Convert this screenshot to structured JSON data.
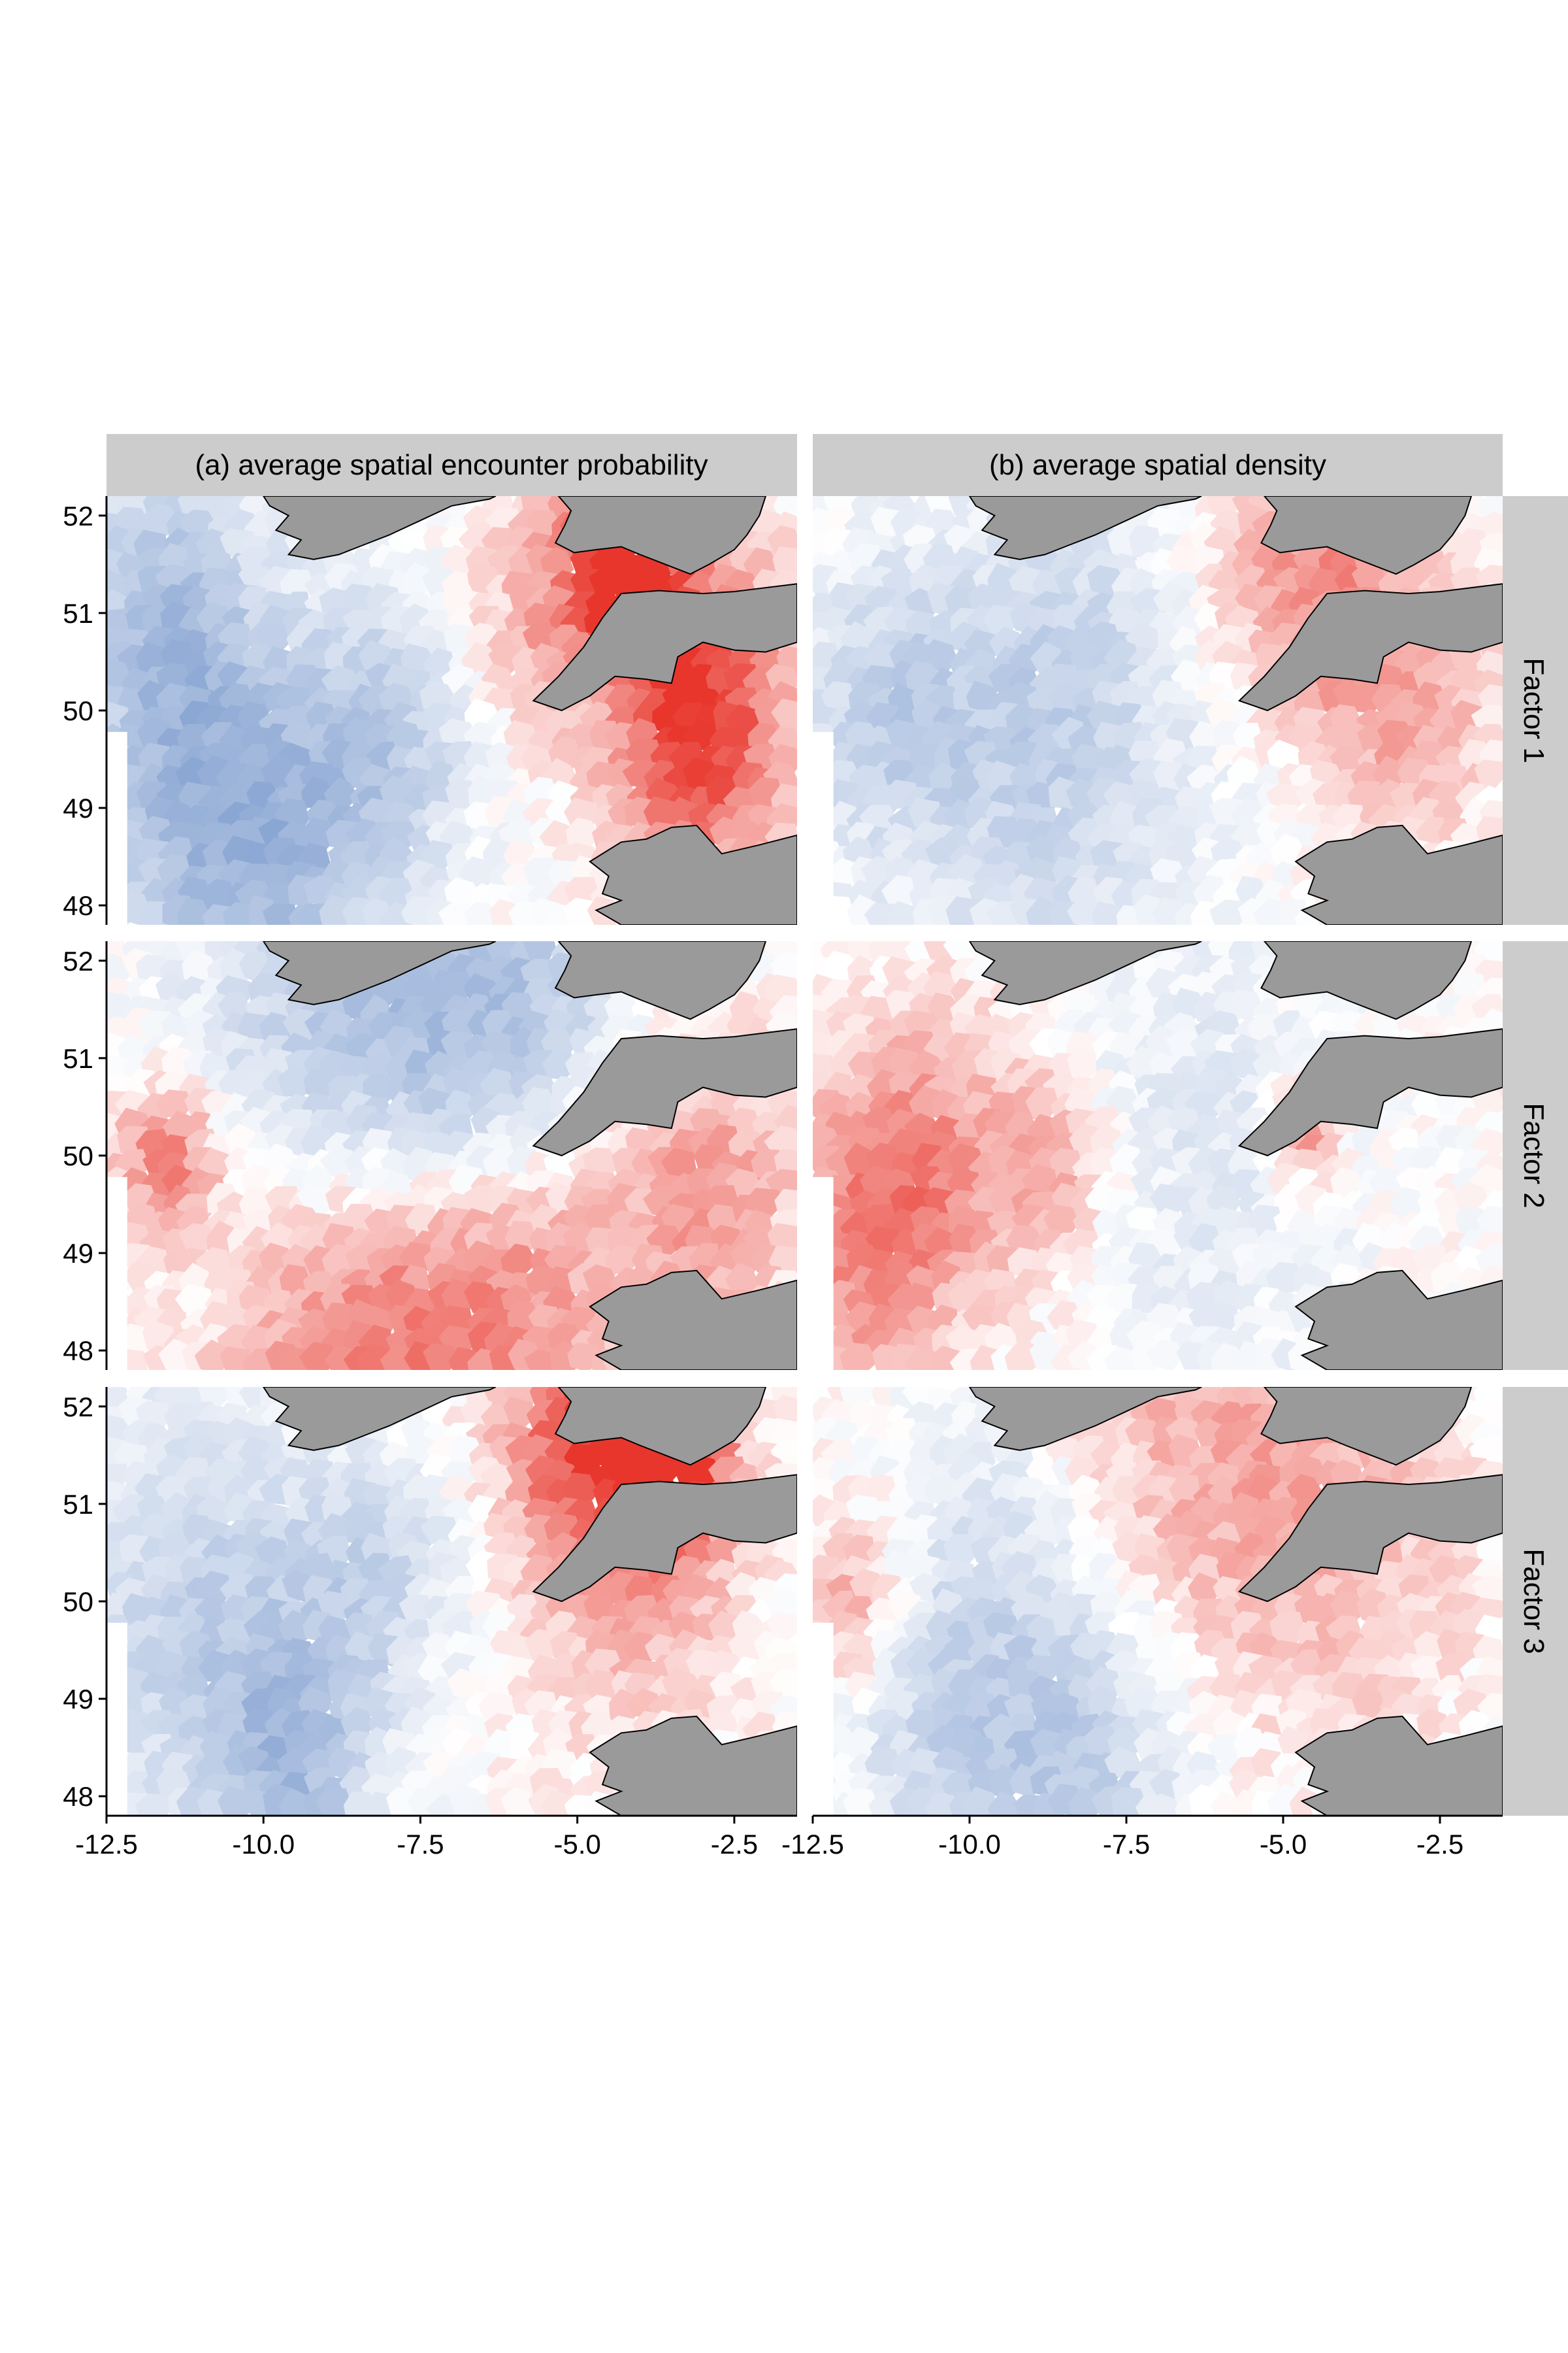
{
  "figure": {
    "column_strips": [
      "(a) average spatial encounter probability",
      "(b) average spatial density"
    ],
    "row_strips": [
      "Factor 1",
      "Factor 2",
      "Factor 3"
    ]
  },
  "chart_data": {
    "type": "heatmap",
    "xlim": [
      -12.5,
      -1.5
    ],
    "ylim": [
      47.8,
      52.2
    ],
    "x_ticks": [
      -12.5,
      -10.0,
      -7.5,
      -5.0,
      -2.5
    ],
    "x_tick_labels": [
      "-12.5",
      "-10.0",
      "-7.5",
      "-5.0",
      "-2.5"
    ],
    "y_ticks": [
      48,
      49,
      50,
      51,
      52
    ],
    "y_tick_labels": [
      "48",
      "49",
      "50",
      "51",
      "52"
    ],
    "palette": {
      "negative": "#8aa6d3",
      "neutral": "#ffffff",
      "positive": "#e8362c"
    },
    "land_color": "#9a9a9a",
    "coast_color": "#000000",
    "strip_color": "#cccccc",
    "panels": [
      {
        "row": "Factor 1",
        "column": "(a) average spatial encounter probability",
        "hotspots": [
          {
            "lon": -4.2,
            "lat": 51.6,
            "value": 1.0,
            "r": 0.9
          },
          {
            "lon": -3.0,
            "lat": 50.3,
            "value": 0.8,
            "r": 1.5
          },
          {
            "lon": -5.5,
            "lat": 50.9,
            "value": 0.4,
            "r": 1.2
          },
          {
            "lon": -11.0,
            "lat": 49.1,
            "value": -0.7,
            "r": 2.0
          },
          {
            "lon": -11.5,
            "lat": 51.2,
            "value": -0.5,
            "r": 1.5
          },
          {
            "lon": -8.0,
            "lat": 49.7,
            "value": -0.5,
            "r": 1.5
          },
          {
            "lon": -9.5,
            "lat": 48.2,
            "value": -0.4,
            "r": 1.6
          },
          {
            "lon": -3.0,
            "lat": 49.1,
            "value": 0.4,
            "r": 1.2
          }
        ]
      },
      {
        "row": "Factor 1",
        "column": "(b) average spatial density",
        "hotspots": [
          {
            "lon": -4.5,
            "lat": 51.4,
            "value": 0.5,
            "r": 1.5
          },
          {
            "lon": -3.0,
            "lat": 50.0,
            "value": 0.4,
            "r": 1.5
          },
          {
            "lon": -11.3,
            "lat": 50.0,
            "value": -0.5,
            "r": 1.5
          },
          {
            "lon": -8.5,
            "lat": 50.6,
            "value": -0.4,
            "r": 1.8
          },
          {
            "lon": -9.0,
            "lat": 48.5,
            "value": -0.3,
            "r": 2.0
          },
          {
            "lon": -6.0,
            "lat": 49.0,
            "value": -0.1,
            "r": 2.0
          }
        ]
      },
      {
        "row": "Factor 2",
        "column": "(a) average spatial encounter probability",
        "hotspots": [
          {
            "lon": -8.5,
            "lat": 51.3,
            "value": -0.6,
            "r": 2.5
          },
          {
            "lon": -6.0,
            "lat": 51.5,
            "value": -0.5,
            "r": 2.0
          },
          {
            "lon": -11.5,
            "lat": 49.9,
            "value": 0.7,
            "r": 0.8
          },
          {
            "lon": -9.0,
            "lat": 48.3,
            "value": 0.5,
            "r": 2.0
          },
          {
            "lon": -7.0,
            "lat": 48.3,
            "value": 0.5,
            "r": 1.8
          },
          {
            "lon": -3.0,
            "lat": 49.6,
            "value": 0.5,
            "r": 1.6
          },
          {
            "lon": -5.5,
            "lat": 49.0,
            "value": 0.3,
            "r": 1.5
          }
        ]
      },
      {
        "row": "Factor 2",
        "column": "(b) average spatial density",
        "hotspots": [
          {
            "lon": -11.5,
            "lat": 49.1,
            "value": 0.6,
            "r": 1.6
          },
          {
            "lon": -10.5,
            "lat": 50.3,
            "value": 0.3,
            "r": 1.5
          },
          {
            "lon": -4.6,
            "lat": 50.2,
            "value": 0.6,
            "r": 0.5
          },
          {
            "lon": -8.7,
            "lat": 49.9,
            "value": 0.4,
            "r": 1.0
          },
          {
            "lon": -6.5,
            "lat": 50.6,
            "value": -0.2,
            "r": 2.0
          },
          {
            "lon": -5.5,
            "lat": 48.6,
            "value": -0.1,
            "r": 2.0
          }
        ]
      },
      {
        "row": "Factor 3",
        "column": "(a) average spatial encounter probability",
        "hotspots": [
          {
            "lon": -3.5,
            "lat": 51.4,
            "value": 1.0,
            "r": 0.9
          },
          {
            "lon": -5.0,
            "lat": 51.7,
            "value": 0.7,
            "r": 1.2
          },
          {
            "lon": -4.0,
            "lat": 50.3,
            "value": 0.4,
            "r": 1.8
          },
          {
            "lon": -11.0,
            "lat": 49.8,
            "value": -0.5,
            "r": 2.2
          },
          {
            "lon": -9.5,
            "lat": 48.3,
            "value": -0.6,
            "r": 1.3
          },
          {
            "lon": -8.2,
            "lat": 50.2,
            "value": -0.4,
            "r": 1.3
          }
        ]
      },
      {
        "row": "Factor 3",
        "column": "(b) average spatial density",
        "hotspots": [
          {
            "lon": -6.0,
            "lat": 51.4,
            "value": 0.4,
            "r": 2.5
          },
          {
            "lon": -11.8,
            "lat": 49.9,
            "value": 0.5,
            "r": 0.9
          },
          {
            "lon": -3.5,
            "lat": 50.5,
            "value": 0.2,
            "r": 2.0
          },
          {
            "lon": -8.5,
            "lat": 48.3,
            "value": -0.6,
            "r": 2.0
          },
          {
            "lon": -10.8,
            "lat": 49.0,
            "value": -0.3,
            "r": 1.5
          },
          {
            "lon": -9.5,
            "lat": 50.8,
            "value": -0.2,
            "r": 1.5
          }
        ]
      }
    ]
  }
}
